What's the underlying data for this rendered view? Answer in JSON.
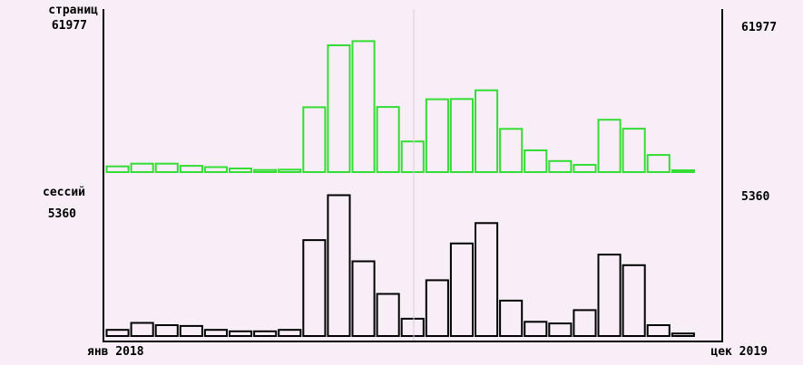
{
  "colors": {
    "top_series": "#33dd33",
    "bottom_series": "#000000",
    "background": "#f7eef7"
  },
  "chart_data": [
    {
      "type": "bar",
      "title": "",
      "series": [
        {
          "name": "страниц",
          "max_label": "61977",
          "values": [
            2350,
            3500,
            3500,
            2600,
            2050,
            1500,
            850,
            1000,
            26900,
            52600,
            54300,
            27000,
            12700,
            30200,
            30300,
            33900,
            17900,
            9000,
            4600,
            3000,
            21700,
            18000,
            7100,
            600
          ]
        }
      ],
      "ylim": [
        0,
        61977
      ],
      "x_labels": {
        "start": "янв 2018",
        "end": "цек 2019"
      },
      "grid": false
    },
    {
      "type": "bar",
      "title": "",
      "series": [
        {
          "name": "сессий",
          "max_label": "5360",
          "values": [
            220,
            470,
            390,
            360,
            220,
            170,
            170,
            220,
            3440,
            5050,
            2680,
            1510,
            620,
            2000,
            3320,
            4050,
            1270,
            510,
            450,
            930,
            2920,
            2540,
            390,
            90
          ]
        }
      ],
      "ylim": [
        0,
        5360
      ],
      "x_labels": {
        "start": "янв 2018",
        "end": "цек 2019"
      },
      "grid": false
    }
  ],
  "labels": {
    "top_name": "страниц",
    "top_max_left": "61977",
    "top_max_right": "61977",
    "bottom_name": "сессий",
    "bottom_max_left": "5360",
    "bottom_max_right": "5360",
    "x_start": "янв 2018",
    "x_end": "цек 2019"
  }
}
